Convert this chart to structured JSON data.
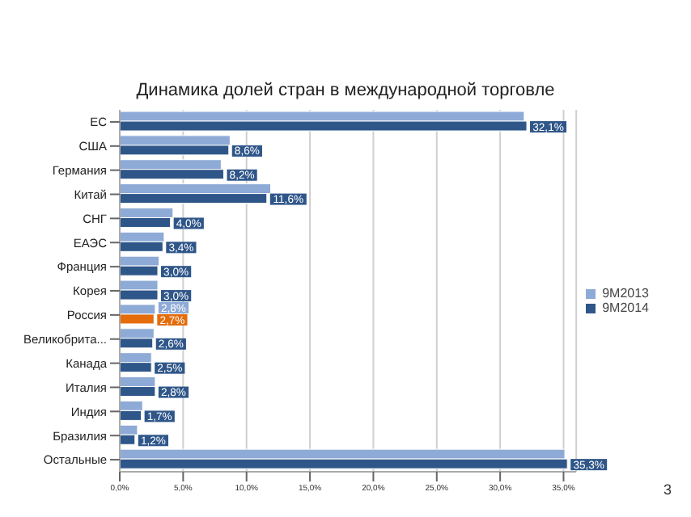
{
  "chart_data": {
    "type": "bar",
    "orientation": "horizontal",
    "title": "Динамика долей стран в международной торговле",
    "categories": [
      "ЕС",
      "США",
      "Германия",
      "Китай",
      "СНГ",
      "ЕАЭС",
      "Франция",
      "Корея",
      "Россия",
      "Великобрита...",
      "Канада",
      "Италия",
      "Индия",
      "Бразилия",
      "Остальные"
    ],
    "series": [
      {
        "name": "9M2013",
        "color": "#8eaad6",
        "values": [
          31.9,
          8.7,
          8.0,
          11.9,
          4.2,
          3.5,
          3.1,
          3.0,
          2.8,
          2.7,
          2.5,
          2.8,
          1.8,
          1.4,
          35.1
        ],
        "value_labels": [
          null,
          null,
          null,
          null,
          null,
          null,
          null,
          null,
          "2,8%",
          null,
          null,
          null,
          null,
          null,
          null
        ]
      },
      {
        "name": "9M2014",
        "color": "#2f5689",
        "colors": [
          "#2f5689",
          "#2f5689",
          "#2f5689",
          "#2f5689",
          "#2f5689",
          "#2f5689",
          "#2f5689",
          "#2f5689",
          "#e46c0a",
          "#2f5689",
          "#2f5689",
          "#2f5689",
          "#2f5689",
          "#2f5689",
          "#2f5689"
        ],
        "values": [
          32.1,
          8.6,
          8.2,
          11.6,
          4.0,
          3.4,
          3.0,
          3.0,
          2.7,
          2.6,
          2.5,
          2.8,
          1.7,
          1.2,
          35.3
        ],
        "value_labels": [
          "32,1%",
          "8,6%",
          "8,2%",
          "11,6%",
          "4,0%",
          "3,4%",
          "3,0%",
          "3,0%",
          "2,7%",
          "2,6%",
          "2,5%",
          "2,8%",
          "1,7%",
          "1,2%",
          "35,3%"
        ]
      }
    ],
    "xlim": [
      0,
      36
    ],
    "xticks": [
      {
        "value": 0,
        "label": "0,0%"
      },
      {
        "value": 5,
        "label": "5,0%"
      },
      {
        "value": 10,
        "label": "10,0%"
      },
      {
        "value": 15,
        "label": "15,0%"
      },
      {
        "value": 20,
        "label": "20,0%"
      },
      {
        "value": 25,
        "label": "25,0%"
      },
      {
        "value": 30,
        "label": "30,0%"
      },
      {
        "value": 35,
        "label": "35,0%"
      }
    ],
    "grid": "x",
    "legend": "right",
    "annotations": [
      "3"
    ]
  }
}
